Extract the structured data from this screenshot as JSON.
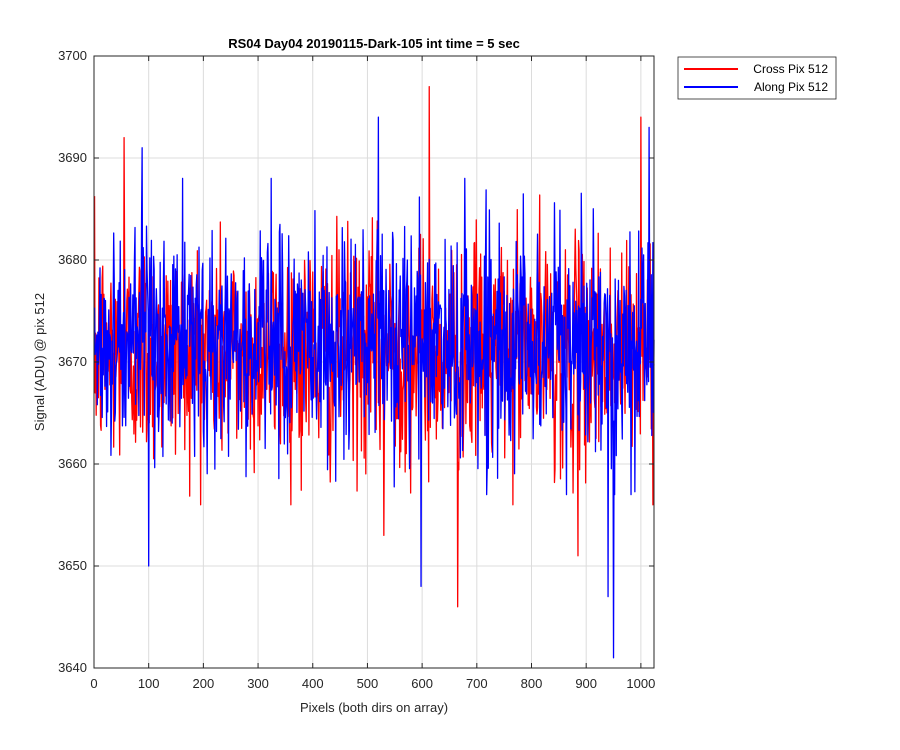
{
  "chart_data": {
    "type": "line",
    "title": "RS04 Day04 20190115-Dark-105 int time = 5 sec",
    "xlabel": "Pixels (both dirs on array)",
    "ylabel": "Signal (ADU) @ pix 512",
    "xlim": [
      0,
      1024
    ],
    "ylim": [
      3640,
      3700
    ],
    "xticks": [
      0,
      100,
      200,
      300,
      400,
      500,
      600,
      700,
      800,
      900,
      1000
    ],
    "yticks": [
      3640,
      3650,
      3660,
      3670,
      3680,
      3690,
      3700
    ],
    "grid": true,
    "legend_position": "outside-top-right",
    "series": [
      {
        "name": "Cross Pix 512",
        "color": "#ff0000",
        "mean": 3671,
        "extremes": [
          {
            "x": 613,
            "y": 3697
          },
          {
            "x": 665,
            "y": 3646
          },
          {
            "x": 55,
            "y": 3692
          },
          {
            "x": 1000,
            "y": 3694
          },
          {
            "x": 885,
            "y": 3651
          },
          {
            "x": 530,
            "y": 3653
          }
        ]
      },
      {
        "name": "Along Pix 512",
        "color": "#0000ff",
        "mean": 3672,
        "extremes": [
          {
            "x": 950,
            "y": 3641
          },
          {
            "x": 940,
            "y": 3647
          },
          {
            "x": 598,
            "y": 3648
          },
          {
            "x": 100,
            "y": 3650
          },
          {
            "x": 1015,
            "y": 3693
          },
          {
            "x": 520,
            "y": 3694
          },
          {
            "x": 88,
            "y": 3691
          }
        ]
      }
    ]
  }
}
